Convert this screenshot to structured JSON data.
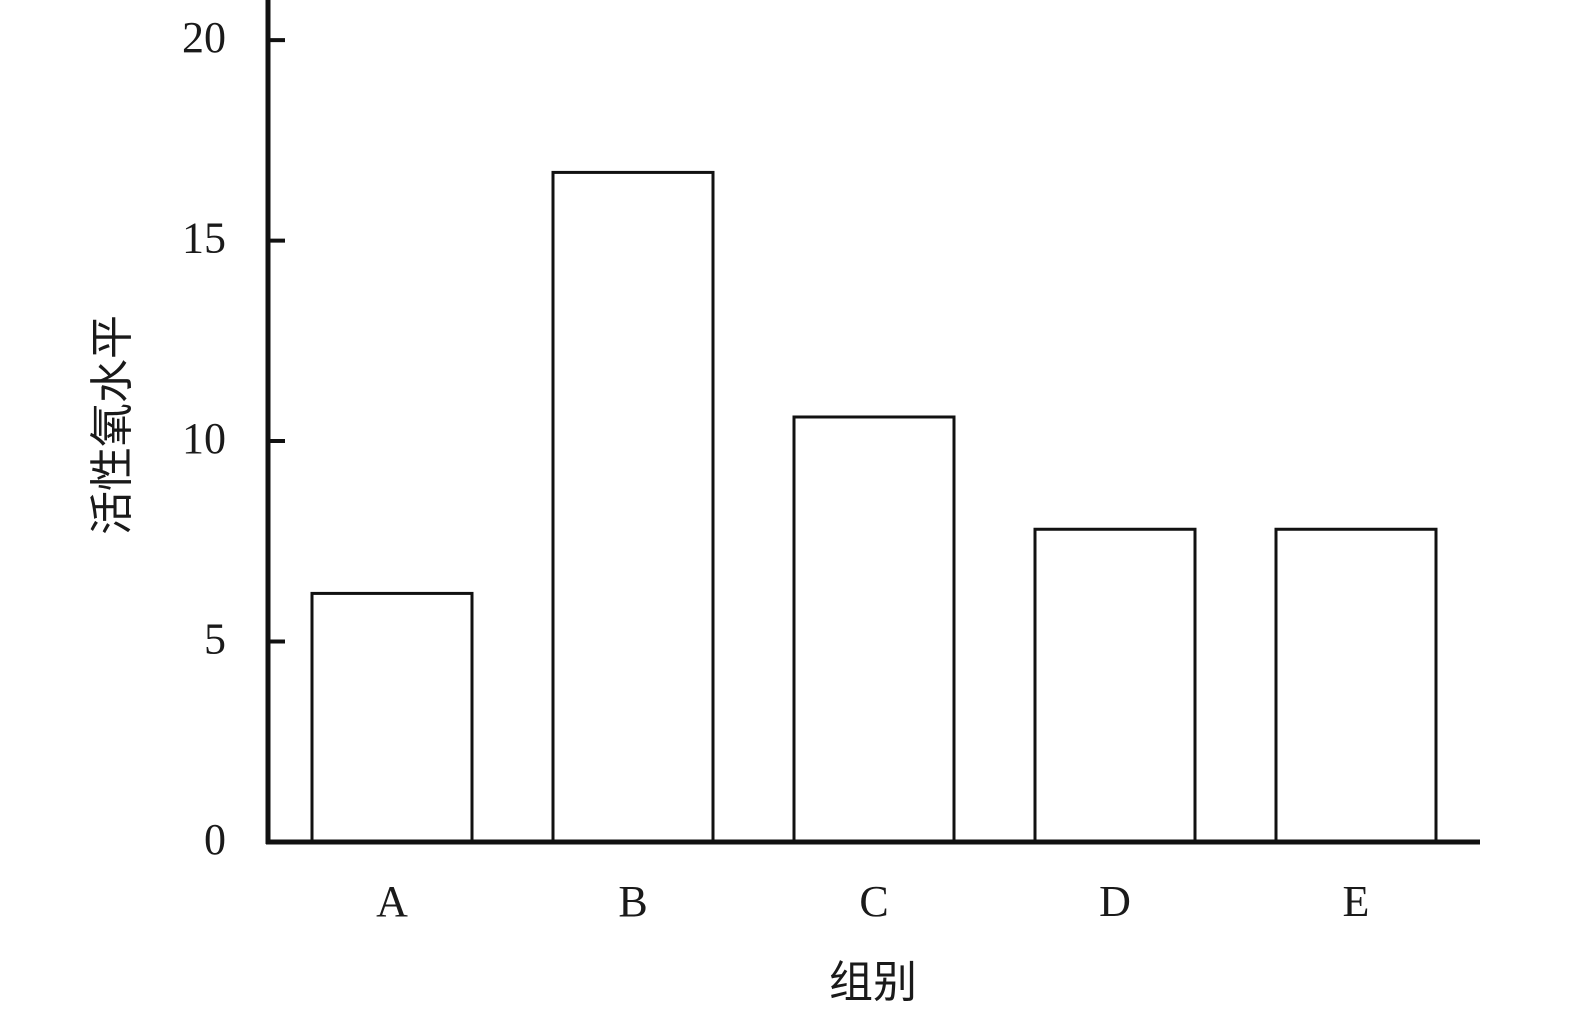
{
  "chart_data": {
    "type": "bar",
    "x_label": "组别",
    "y_label": "活性氧水平",
    "categories": [
      "A",
      "B",
      "C",
      "D",
      "E"
    ],
    "values": [
      6.2,
      16.7,
      10.6,
      7.8,
      7.8
    ],
    "color": "#ffffff",
    "edge_color": "#111111",
    "ylim": [
      0,
      21
    ],
    "yticks": [
      0,
      5,
      10,
      15,
      20
    ],
    "grid": false
  }
}
